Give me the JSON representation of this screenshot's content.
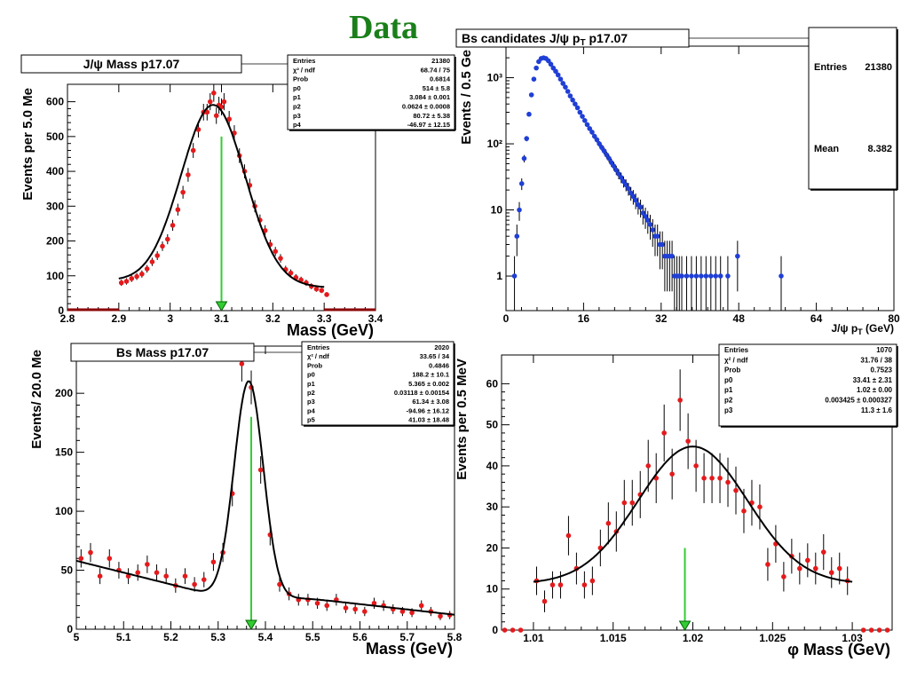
{
  "page": {
    "title": "Data",
    "title_color": "#1a7f1a"
  },
  "colors": {
    "red_points": "#e41a1c",
    "blue_points": "#1f3fd6",
    "fit": "#000000",
    "arrow": "#33cc33",
    "dark_red_floor": "#8b0000"
  },
  "chart_data": [
    {
      "id": "jpsi",
      "type": "scatter",
      "title": "J/ψ Mass  p17.07",
      "xlabel": "Mass (GeV)",
      "ylabel": "Events per 5.0 Me",
      "xlim": [
        2.8,
        3.4
      ],
      "ylim": [
        0,
        650
      ],
      "xticks": [
        2.8,
        2.9,
        3.0,
        3.1,
        3.2,
        3.3,
        3.4
      ],
      "xtick_labels": [
        "2.8",
        "2.9",
        "3",
        "3.1",
        "3.2",
        "3.3",
        "3.4"
      ],
      "yticks": [
        0,
        100,
        200,
        300,
        400,
        500,
        600
      ],
      "ytick_labels": [
        "0",
        "100",
        "200",
        "300",
        "400",
        "500",
        "600"
      ],
      "marker_color": "#e41a1c",
      "arrow": {
        "x": 3.1,
        "y_top": 500
      },
      "zero_floor": [
        [
          2.8,
          2.9
        ],
        [
          3.3,
          3.4
        ]
      ],
      "fit": {
        "kind": "gauss_quad",
        "a": 514,
        "mu": 3.084,
        "sigma": 0.0624,
        "b0": 80.72,
        "b1": -46.97,
        "xmin": 2.9,
        "xmax": 3.3
      },
      "stats": [
        [
          "Entries",
          "21380"
        ],
        [
          "χ² / ndf",
          "68.74 / 75"
        ],
        [
          "Prob",
          "0.6814"
        ],
        [
          "p0",
          "514 ± 5.8"
        ],
        [
          "p1",
          "3.084 ± 0.001"
        ],
        [
          "p2",
          "0.0624 ± 0.0008"
        ],
        [
          "p3",
          "80.72 ± 5.38"
        ],
        [
          "p4",
          "-46.97 ± 12.15"
        ]
      ],
      "points": [
        [
          2.905,
          80
        ],
        [
          2.915,
          84
        ],
        [
          2.925,
          92
        ],
        [
          2.935,
          98
        ],
        [
          2.945,
          105
        ],
        [
          2.955,
          120
        ],
        [
          2.965,
          140
        ],
        [
          2.975,
          158
        ],
        [
          2.985,
          185
        ],
        [
          2.995,
          205
        ],
        [
          3.005,
          245
        ],
        [
          3.015,
          290
        ],
        [
          3.025,
          340
        ],
        [
          3.035,
          390
        ],
        [
          3.045,
          460
        ],
        [
          3.055,
          520
        ],
        [
          3.065,
          570
        ],
        [
          3.072,
          570
        ],
        [
          3.078,
          600
        ],
        [
          3.085,
          625
        ],
        [
          3.09,
          560
        ],
        [
          3.095,
          590
        ],
        [
          3.1,
          585
        ],
        [
          3.105,
          600
        ],
        [
          3.115,
          550
        ],
        [
          3.125,
          510
        ],
        [
          3.135,
          445
        ],
        [
          3.145,
          400
        ],
        [
          3.155,
          360
        ],
        [
          3.165,
          300
        ],
        [
          3.175,
          260
        ],
        [
          3.185,
          230
        ],
        [
          3.195,
          190
        ],
        [
          3.205,
          170
        ],
        [
          3.215,
          150
        ],
        [
          3.225,
          118
        ],
        [
          3.235,
          108
        ],
        [
          3.245,
          95
        ],
        [
          3.255,
          88
        ],
        [
          3.265,
          80
        ],
        [
          3.275,
          70
        ],
        [
          3.285,
          62
        ],
        [
          3.295,
          58
        ],
        [
          3.305,
          46
        ]
      ]
    },
    {
      "id": "bspt",
      "type": "scatter",
      "title": "Bs candidates J/ψ p",
      "title_sub": "T",
      "title_tail": " p17.07",
      "xlabel": "J/ψ p",
      "xlabel_sub": "T",
      "xlabel_tail": "    (GeV)",
      "ylabel": "Events / 0.5 Ge",
      "xlim": [
        0,
        80
      ],
      "ylim_log": [
        0.3,
        3000
      ],
      "xticks": [
        0,
        16,
        32,
        48,
        64,
        80
      ],
      "xtick_labels": [
        "0",
        "16",
        "32",
        "48",
        "64",
        "80"
      ],
      "yticks": [
        1,
        10,
        100,
        1000
      ],
      "ytick_labels": [
        "1",
        "10",
        "10²",
        "10³"
      ],
      "marker_color": "#1f3fd6",
      "stats": [
        [
          "Entries",
          "21380"
        ],
        [
          "Mean",
          "8.382"
        ]
      ],
      "points": [
        [
          1.75,
          1
        ],
        [
          2.25,
          4
        ],
        [
          2.75,
          10
        ],
        [
          3.25,
          25
        ],
        [
          3.75,
          60
        ],
        [
          4.25,
          120
        ],
        [
          4.75,
          280
        ],
        [
          5.25,
          550
        ],
        [
          5.75,
          950
        ],
        [
          6.25,
          1400
        ],
        [
          6.75,
          1750
        ],
        [
          7.25,
          1950
        ],
        [
          7.75,
          2000
        ],
        [
          8.25,
          1950
        ],
        [
          8.75,
          1800
        ],
        [
          9.25,
          1600
        ],
        [
          9.75,
          1400
        ],
        [
          10.25,
          1250
        ],
        [
          10.75,
          1100
        ],
        [
          11.25,
          950
        ],
        [
          11.75,
          820
        ],
        [
          12.25,
          720
        ],
        [
          12.75,
          620
        ],
        [
          13.25,
          530
        ],
        [
          13.75,
          460
        ],
        [
          14.25,
          400
        ],
        [
          14.75,
          350
        ],
        [
          15.25,
          300
        ],
        [
          15.75,
          260
        ],
        [
          16.25,
          225
        ],
        [
          16.75,
          195
        ],
        [
          17.25,
          170
        ],
        [
          17.75,
          150
        ],
        [
          18.25,
          130
        ],
        [
          18.75,
          115
        ],
        [
          19.25,
          100
        ],
        [
          19.75,
          88
        ],
        [
          20.25,
          78
        ],
        [
          20.75,
          68
        ],
        [
          21.25,
          60
        ],
        [
          21.75,
          52
        ],
        [
          22.25,
          46
        ],
        [
          22.75,
          40
        ],
        [
          23.25,
          35
        ],
        [
          23.75,
          31
        ],
        [
          24.25,
          27
        ],
        [
          24.75,
          24
        ],
        [
          25.25,
          21
        ],
        [
          25.75,
          18
        ],
        [
          26.25,
          16
        ],
        [
          26.75,
          14
        ],
        [
          27.25,
          12
        ],
        [
          27.75,
          11
        ],
        [
          28.25,
          9
        ],
        [
          28.75,
          8
        ],
        [
          29.25,
          7
        ],
        [
          29.75,
          6
        ],
        [
          30.25,
          5
        ],
        [
          30.75,
          4
        ],
        [
          31.25,
          4
        ],
        [
          31.75,
          3
        ],
        [
          32.25,
          3
        ],
        [
          32.75,
          2
        ],
        [
          33.25,
          2
        ],
        [
          33.75,
          2
        ],
        [
          34.25,
          2
        ],
        [
          34.75,
          1
        ],
        [
          35.25,
          1
        ],
        [
          35.75,
          1
        ],
        [
          36.25,
          1
        ],
        [
          37.25,
          1
        ],
        [
          38.25,
          1
        ],
        [
          39.25,
          1
        ],
        [
          40.25,
          1
        ],
        [
          41.25,
          1
        ],
        [
          42.25,
          1
        ],
        [
          43.25,
          1
        ],
        [
          44.25,
          1
        ],
        [
          45.75,
          1
        ],
        [
          47.75,
          2
        ],
        [
          56.75,
          1
        ]
      ]
    },
    {
      "id": "bsmass",
      "type": "scatter",
      "title": "Bs Mass  p17.07",
      "xlabel": "Mass (GeV)",
      "ylabel": "Events/ 20.0 Me",
      "xlim": [
        5.0,
        5.8
      ],
      "ylim": [
        0,
        240
      ],
      "xticks": [
        5.0,
        5.1,
        5.2,
        5.3,
        5.4,
        5.5,
        5.6,
        5.7,
        5.8
      ],
      "xtick_labels": [
        "5",
        "5.1",
        "5.2",
        "5.3",
        "5.4",
        "5.5",
        "5.6",
        "5.7",
        "5.8"
      ],
      "yticks": [
        0,
        50,
        100,
        150,
        200
      ],
      "ytick_labels": [
        "0",
        "50",
        "100",
        "150",
        "200"
      ],
      "marker_color": "#e41a1c",
      "arrow": {
        "x": 5.37,
        "y_top": 180
      },
      "fit": {
        "kind": "gauss_bs",
        "a": 188.2,
        "mu": 5.365,
        "sigma": 0.03118,
        "xmin": 5.0,
        "xmax": 5.8
      },
      "stats": [
        [
          "Entries",
          "2020"
        ],
        [
          "χ² / ndf",
          "33.65 / 34"
        ],
        [
          "Prob",
          "0.4846"
        ],
        [
          "p0",
          "188.2 ± 10.1"
        ],
        [
          "p1",
          "5.365 ± 0.002"
        ],
        [
          "p2",
          "0.03118 ± 0.00154"
        ],
        [
          "p3",
          "61.34 ± 3.08"
        ],
        [
          "p4",
          "-94.96 ± 16.12"
        ],
        [
          "p5",
          "41.03 ± 18.48"
        ]
      ],
      "points": [
        [
          5.01,
          60
        ],
        [
          5.03,
          65
        ],
        [
          5.05,
          45
        ],
        [
          5.07,
          60
        ],
        [
          5.09,
          50
        ],
        [
          5.11,
          45
        ],
        [
          5.13,
          48
        ],
        [
          5.15,
          55
        ],
        [
          5.17,
          48
        ],
        [
          5.19,
          45
        ],
        [
          5.21,
          37
        ],
        [
          5.23,
          45
        ],
        [
          5.25,
          38
        ],
        [
          5.27,
          42
        ],
        [
          5.29,
          57
        ],
        [
          5.31,
          65
        ],
        [
          5.33,
          115
        ],
        [
          5.35,
          225
        ],
        [
          5.37,
          205
        ],
        [
          5.39,
          135
        ],
        [
          5.41,
          80
        ],
        [
          5.43,
          38
        ],
        [
          5.45,
          30
        ],
        [
          5.47,
          25
        ],
        [
          5.49,
          25
        ],
        [
          5.51,
          22
        ],
        [
          5.53,
          20
        ],
        [
          5.55,
          25
        ],
        [
          5.57,
          18
        ],
        [
          5.59,
          17
        ],
        [
          5.61,
          15
        ],
        [
          5.63,
          22
        ],
        [
          5.65,
          20
        ],
        [
          5.67,
          17
        ],
        [
          5.69,
          15
        ],
        [
          5.71,
          14
        ],
        [
          5.73,
          20
        ],
        [
          5.75,
          15
        ],
        [
          5.77,
          11
        ],
        [
          5.79,
          12
        ]
      ]
    },
    {
      "id": "phi",
      "type": "scatter",
      "title": "",
      "xlabel": "φ Mass (GeV)",
      "ylabel": "Events per 0.5 MeV",
      "xlim": [
        1.008,
        1.0325
      ],
      "ylim": [
        0,
        67
      ],
      "xticks": [
        1.01,
        1.015,
        1.02,
        1.025,
        1.03
      ],
      "xtick_labels": [
        "1.01",
        "1.015",
        "1.02",
        "1.025",
        "1.03"
      ],
      "yticks": [
        0,
        10,
        20,
        30,
        40,
        50,
        60
      ],
      "ytick_labels": [
        "0",
        "10",
        "20",
        "30",
        "40",
        "50",
        "60"
      ],
      "marker_color": "#e41a1c",
      "arrow": {
        "x": 1.0195,
        "y_top": 20
      },
      "fit": {
        "kind": "gauss_const",
        "a": 33.41,
        "mu": 1.02,
        "sigma": 0.003425,
        "c": 11.3,
        "xmin": 1.01,
        "xmax": 1.03
      },
      "stats": [
        [
          "Entries",
          "1070"
        ],
        [
          "χ² / ndf",
          "31.76 / 38"
        ],
        [
          "Prob",
          "0.7523"
        ],
        [
          "p0",
          "33.41 ± 2.31"
        ],
        [
          "p1",
          "1.02 ± 0.00"
        ],
        [
          "p2",
          "0.003425 ± 0.000327"
        ],
        [
          "p3",
          "11.3 ± 1.6"
        ]
      ],
      "points": [
        [
          1.0082,
          0
        ],
        [
          1.0087,
          0
        ],
        [
          1.0092,
          0
        ],
        [
          1.0102,
          12
        ],
        [
          1.0107,
          7
        ],
        [
          1.0112,
          11
        ],
        [
          1.0117,
          11
        ],
        [
          1.0122,
          23
        ],
        [
          1.0127,
          15
        ],
        [
          1.0132,
          11
        ],
        [
          1.0137,
          12
        ],
        [
          1.0142,
          20
        ],
        [
          1.0147,
          26
        ],
        [
          1.0152,
          24
        ],
        [
          1.0157,
          31
        ],
        [
          1.0162,
          31
        ],
        [
          1.0167,
          33
        ],
        [
          1.0172,
          40
        ],
        [
          1.0177,
          37
        ],
        [
          1.0182,
          48
        ],
        [
          1.0187,
          38
        ],
        [
          1.0192,
          56
        ],
        [
          1.0197,
          46
        ],
        [
          1.0202,
          40
        ],
        [
          1.0207,
          37
        ],
        [
          1.0212,
          37
        ],
        [
          1.0217,
          37
        ],
        [
          1.0222,
          36
        ],
        [
          1.0227,
          34
        ],
        [
          1.0232,
          29
        ],
        [
          1.0237,
          31
        ],
        [
          1.0242,
          30
        ],
        [
          1.0247,
          16
        ],
        [
          1.0252,
          21
        ],
        [
          1.0257,
          13
        ],
        [
          1.0262,
          18
        ],
        [
          1.0267,
          15
        ],
        [
          1.0272,
          17
        ],
        [
          1.0277,
          15
        ],
        [
          1.0282,
          19
        ],
        [
          1.0287,
          14
        ],
        [
          1.0292,
          15
        ],
        [
          1.0297,
          12
        ],
        [
          1.0307,
          0
        ],
        [
          1.0312,
          0
        ],
        [
          1.0317,
          0
        ],
        [
          1.0322,
          0
        ]
      ]
    }
  ]
}
